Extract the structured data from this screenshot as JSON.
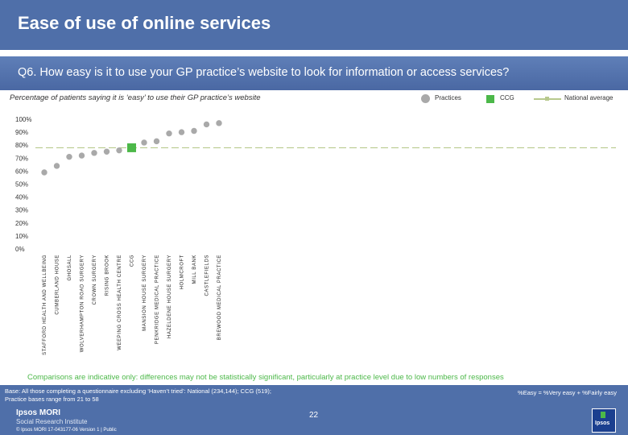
{
  "header": {
    "title": "Ease of use of online services"
  },
  "question": "Q6. How easy is it to use your GP practice’s website to look for information or access services?",
  "subtitle": "Percentage of patients saying it is ‘easy’ to use their GP practice’s website",
  "legend": {
    "practices": "Practices",
    "ccg": "CCG",
    "national": "National average"
  },
  "colors": {
    "practice": "#a9a9a9",
    "ccg": "#4cb849",
    "national": "#b8c98d",
    "accent": "#4f6fa9"
  },
  "chart_data": {
    "type": "scatter",
    "title": "Percentage of patients saying it is ‘easy’ to use their GP practice’s website",
    "ylim": [
      0,
      100
    ],
    "y_ticks": [
      "0%",
      "10%",
      "20%",
      "30%",
      "40%",
      "50%",
      "60%",
      "70%",
      "80%",
      "90%",
      "100%"
    ],
    "national_average": 78,
    "categories": [
      "STAFFORD HEALTH AND WELLBEING",
      "CUMBERLAND HOUSE",
      "GHOSALL",
      "WOLVERHAMPTON ROAD SURGERY",
      "CROWN SURGERY",
      "RISING BROOK",
      "WEEPING CROSS HEALTH CENTRE",
      "CCG",
      "MANSION HOUSE SURGERY",
      "PENKRIDGE MEDICAL PRACTICE",
      "HAZELDENE HOUSE SURGERY",
      "HOLMCROFT",
      "MILL BANK",
      "CASTLEFIELDS",
      "BREWOOD MEDICAL PRACTICE"
    ],
    "values": [
      59,
      64,
      71,
      72,
      74,
      75,
      76,
      78,
      82,
      83,
      89,
      90,
      91,
      96,
      97
    ],
    "ccg_index": 7
  },
  "footer": {
    "comparisons": "Comparisons are indicative only: differences may not be statistically significant, particularly at practice level due to low numbers of responses",
    "base_line1": "Base: All those completing a questionnaire excluding ‘Haven’t tried’: National (234,144); CCG (519);",
    "base_line2": "Practice bases range from 21 to 58",
    "easy_def": "%Easy = %Very easy + %Fairly easy",
    "logo_line1": "Ipsos MORI",
    "logo_line2": "Social Research Institute",
    "copyright": "© Ipsos MORI     17-043177-06 Version 1 | Public",
    "page": "22",
    "ipsos_box": "Ipsos"
  }
}
